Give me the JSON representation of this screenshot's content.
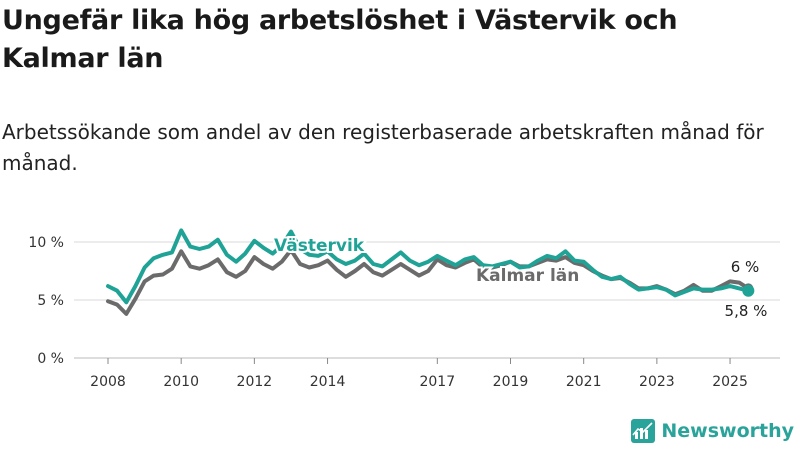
{
  "title": "Ungefär lika hög arbetslöshet i Västervik och Kalmar län",
  "subtitle": "Arbetssökande som andel av den registerbaserade arbetskraften månad för månad.",
  "brand": {
    "name": "Newsworthy",
    "icon": "newsworthy-logo-icon",
    "color": "#2aa39b"
  },
  "chart_data": {
    "type": "line",
    "title": "Ungefär lika hög arbetslöshet i Västervik och Kalmar län",
    "subtitle": "Arbetssökande som andel av den registerbaserade arbetskraften månad för månad.",
    "xlabel": "",
    "ylabel": "",
    "x_unit": "year",
    "xlim": [
      2007.5,
      2026.3
    ],
    "ylim": [
      0,
      10
    ],
    "yticks": [
      0,
      5,
      10
    ],
    "ytick_labels": [
      "0 %",
      "5 %",
      "10 %"
    ],
    "xticks": [
      2008,
      2010,
      2012,
      2014,
      2017,
      2019,
      2021,
      2023,
      2025
    ],
    "grid": true,
    "legend": "inline labels",
    "series": [
      {
        "name": "Västervik",
        "color": "#1fa396",
        "end_label": "5,8 %",
        "x": [
          2008,
          2008.25,
          2008.5,
          2008.75,
          2009,
          2009.25,
          2009.5,
          2009.75,
          2010,
          2010.25,
          2010.5,
          2010.75,
          2011,
          2011.25,
          2011.5,
          2011.75,
          2012,
          2012.25,
          2012.5,
          2012.75,
          2013,
          2013.25,
          2013.5,
          2013.75,
          2014,
          2014.25,
          2014.5,
          2014.75,
          2015,
          2015.25,
          2015.5,
          2015.75,
          2016,
          2016.25,
          2016.5,
          2016.75,
          2017,
          2017.25,
          2017.5,
          2017.75,
          2018,
          2018.25,
          2018.5,
          2018.75,
          2019,
          2019.25,
          2019.5,
          2019.75,
          2020,
          2020.25,
          2020.5,
          2020.75,
          2021,
          2021.25,
          2021.5,
          2021.75,
          2022,
          2022.25,
          2022.5,
          2022.75,
          2023,
          2023.25,
          2023.5,
          2023.75,
          2024,
          2024.25,
          2024.5,
          2024.75,
          2025,
          2025.25,
          2025.5
        ],
        "values": [
          6.2,
          5.8,
          4.8,
          6.2,
          7.8,
          8.6,
          8.9,
          9.1,
          11.0,
          9.6,
          9.4,
          9.6,
          10.2,
          8.9,
          8.3,
          9.0,
          10.1,
          9.5,
          9.0,
          9.7,
          10.9,
          9.4,
          8.9,
          8.8,
          9.2,
          8.5,
          8.1,
          8.4,
          9.0,
          8.1,
          7.9,
          8.5,
          9.1,
          8.4,
          8.0,
          8.3,
          8.8,
          8.4,
          8.0,
          8.5,
          8.7,
          8.0,
          7.9,
          8.1,
          8.3,
          7.8,
          7.9,
          8.4,
          8.8,
          8.6,
          9.2,
          8.4,
          8.3,
          7.6,
          7.0,
          6.8,
          7.0,
          6.4,
          5.9,
          6.0,
          6.1,
          5.9,
          5.4,
          5.7,
          6.0,
          5.9,
          5.9,
          6.0,
          6.2,
          6.0,
          5.8
        ]
      },
      {
        "name": "Kalmar län",
        "color": "#6b6b6b",
        "end_label": "6 %",
        "x": [
          2008,
          2008.25,
          2008.5,
          2008.75,
          2009,
          2009.25,
          2009.5,
          2009.75,
          2010,
          2010.25,
          2010.5,
          2010.75,
          2011,
          2011.25,
          2011.5,
          2011.75,
          2012,
          2012.25,
          2012.5,
          2012.75,
          2013,
          2013.25,
          2013.5,
          2013.75,
          2014,
          2014.25,
          2014.5,
          2014.75,
          2015,
          2015.25,
          2015.5,
          2015.75,
          2016,
          2016.25,
          2016.5,
          2016.75,
          2017,
          2017.25,
          2017.5,
          2017.75,
          2018,
          2018.25,
          2018.5,
          2018.75,
          2019,
          2019.25,
          2019.5,
          2019.75,
          2020,
          2020.25,
          2020.5,
          2020.75,
          2021,
          2021.25,
          2021.5,
          2021.75,
          2022,
          2022.25,
          2022.5,
          2022.75,
          2023,
          2023.25,
          2023.5,
          2023.75,
          2024,
          2024.25,
          2024.5,
          2024.75,
          2025,
          2025.25,
          2025.5
        ],
        "values": [
          4.9,
          4.6,
          3.8,
          5.1,
          6.6,
          7.1,
          7.2,
          7.7,
          9.2,
          7.9,
          7.7,
          8.0,
          8.5,
          7.4,
          7.0,
          7.5,
          8.7,
          8.1,
          7.7,
          8.3,
          9.3,
          8.1,
          7.8,
          8.0,
          8.4,
          7.6,
          7.0,
          7.5,
          8.1,
          7.4,
          7.1,
          7.6,
          8.1,
          7.6,
          7.1,
          7.5,
          8.5,
          8.0,
          7.8,
          8.2,
          8.5,
          7.8,
          7.8,
          8.0,
          8.3,
          7.9,
          7.9,
          8.2,
          8.5,
          8.4,
          8.7,
          8.2,
          8.0,
          7.5,
          7.1,
          6.8,
          6.9,
          6.5,
          6.0,
          6.0,
          6.2,
          5.9,
          5.5,
          5.8,
          6.3,
          5.8,
          5.8,
          6.2,
          6.6,
          6.5,
          6.0
        ]
      }
    ]
  }
}
